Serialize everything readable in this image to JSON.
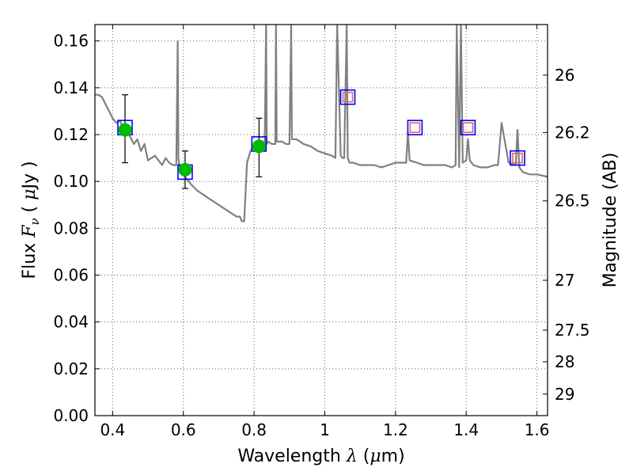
{
  "chart_data": {
    "type": "scatter",
    "title": "",
    "xlabel": "Wavelength  λ (μm)",
    "ylabel": "Flux  Fν  ( μJy )",
    "y2label": "Magnitude (AB)",
    "xlim": [
      0.35,
      1.63
    ],
    "ylim": [
      0.0,
      0.167
    ],
    "grid": true,
    "x_ticks": [
      0.4,
      0.6,
      0.8,
      1.0,
      1.2,
      1.4,
      1.6
    ],
    "x_tick_labels": [
      "0.4",
      "0.6",
      "0.8",
      "1",
      "1.2",
      "1.4",
      "1.6"
    ],
    "y_ticks": [
      0.0,
      0.02,
      0.04,
      0.06,
      0.08,
      0.1,
      0.12,
      0.14,
      0.16
    ],
    "y_tick_labels": [
      "0.00",
      "0.02",
      "0.04",
      "0.06",
      "0.08",
      "0.10",
      "0.12",
      "0.14",
      "0.16"
    ],
    "y2_ticks": [
      {
        "label": "26",
        "flux": 0.1454
      },
      {
        "label": "26.2",
        "flux": 0.1209
      },
      {
        "label": "26.5",
        "flux": 0.0917
      },
      {
        "label": "27",
        "flux": 0.0578
      },
      {
        "label": "27.5",
        "flux": 0.0365
      },
      {
        "label": "28",
        "flux": 0.023
      },
      {
        "label": "29",
        "flux": 0.0092
      }
    ],
    "colors": {
      "template": "#808080",
      "observed": "#00bb00",
      "model_box": "#0000ff",
      "model_inner": "#dd6666",
      "errorbar": "#000000"
    },
    "series": [
      {
        "kind": "template-spectrum",
        "x": [
          0.35,
          0.36,
          0.37,
          0.38,
          0.39,
          0.4,
          0.41,
          0.42,
          0.43,
          0.44,
          0.45,
          0.46,
          0.47,
          0.48,
          0.49,
          0.5,
          0.51,
          0.52,
          0.53,
          0.54,
          0.55,
          0.56,
          0.57,
          0.58,
          0.584,
          0.586,
          0.59,
          0.6,
          0.62,
          0.64,
          0.66,
          0.68,
          0.7,
          0.72,
          0.74,
          0.75,
          0.76,
          0.765,
          0.772,
          0.78,
          0.79,
          0.8,
          0.81,
          0.82,
          0.83,
          0.834,
          0.836,
          0.84,
          0.85,
          0.86,
          0.862,
          0.864,
          0.87,
          0.88,
          0.89,
          0.9,
          0.905,
          0.907,
          0.91,
          0.92,
          0.94,
          0.96,
          0.98,
          1.0,
          1.02,
          1.03,
          1.035,
          1.045,
          1.05,
          1.055,
          1.062,
          1.065,
          1.07,
          1.08,
          1.1,
          1.12,
          1.14,
          1.16,
          1.18,
          1.2,
          1.22,
          1.23,
          1.235,
          1.24,
          1.26,
          1.28,
          1.3,
          1.32,
          1.34,
          1.36,
          1.37,
          1.373,
          1.38,
          1.385,
          1.39,
          1.4,
          1.405,
          1.41,
          1.42,
          1.44,
          1.46,
          1.48,
          1.49,
          1.5,
          1.52,
          1.54,
          1.545,
          1.55,
          1.56,
          1.58,
          1.6,
          1.63
        ],
        "y": [
          0.137,
          0.137,
          0.136,
          0.133,
          0.13,
          0.127,
          0.125,
          0.126,
          0.123,
          0.121,
          0.119,
          0.116,
          0.118,
          0.113,
          0.116,
          0.109,
          0.11,
          0.111,
          0.109,
          0.107,
          0.11,
          0.108,
          0.107,
          0.107,
          0.16,
          0.11,
          0.105,
          0.103,
          0.099,
          0.096,
          0.094,
          0.092,
          0.09,
          0.088,
          0.086,
          0.085,
          0.085,
          0.083,
          0.083,
          0.108,
          0.113,
          0.115,
          0.115,
          0.114,
          0.113,
          0.167,
          0.116,
          0.117,
          0.116,
          0.116,
          0.167,
          0.117,
          0.117,
          0.117,
          0.116,
          0.116,
          0.167,
          0.118,
          0.118,
          0.118,
          0.116,
          0.115,
          0.113,
          0.112,
          0.111,
          0.11,
          0.167,
          0.111,
          0.11,
          0.11,
          0.167,
          0.11,
          0.108,
          0.108,
          0.107,
          0.107,
          0.107,
          0.106,
          0.107,
          0.108,
          0.108,
          0.108,
          0.121,
          0.109,
          0.108,
          0.107,
          0.107,
          0.107,
          0.107,
          0.106,
          0.107,
          0.167,
          0.106,
          0.167,
          0.108,
          0.109,
          0.118,
          0.109,
          0.107,
          0.106,
          0.106,
          0.107,
          0.107,
          0.125,
          0.108,
          0.107,
          0.122,
          0.106,
          0.104,
          0.103,
          0.103,
          0.102
        ]
      },
      {
        "kind": "observed-photometry",
        "x": [
          0.435,
          0.605,
          0.814
        ],
        "y": [
          0.122,
          0.105,
          0.115
        ],
        "yerr_low": [
          0.108,
          0.097,
          0.102
        ],
        "yerr_high": [
          0.137,
          0.113,
          0.127
        ]
      },
      {
        "kind": "model-photometry",
        "x": [
          0.435,
          0.605,
          0.814,
          1.065,
          1.255,
          1.405,
          1.545
        ],
        "y": [
          0.123,
          0.104,
          0.116,
          0.136,
          0.123,
          0.123,
          0.11
        ]
      }
    ]
  }
}
